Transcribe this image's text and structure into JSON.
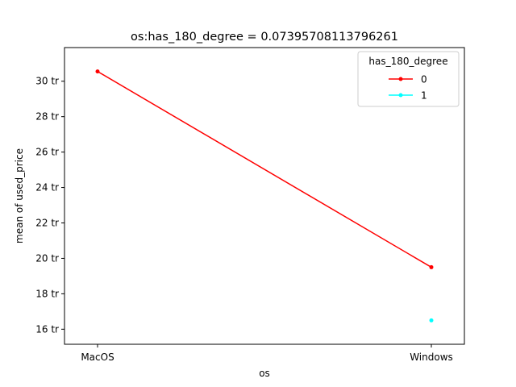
{
  "chart_data": {
    "type": "line",
    "title": "os:has_180_degree = 0.07395708113796261",
    "xlabel": "os",
    "ylabel": "mean of used_price",
    "categories": [
      "MacOS",
      "Windows"
    ],
    "ylim": [
      15.15,
      31.9
    ],
    "yticks": [
      16,
      18,
      20,
      22,
      24,
      26,
      28,
      30
    ],
    "ytick_suffix": " tr",
    "grid": false,
    "legend": {
      "title": "has_180_degree",
      "placement": "top-right"
    },
    "series": [
      {
        "name": "0",
        "color": "#ff0000",
        "values": [
          30.55,
          19.5
        ]
      },
      {
        "name": "1",
        "color": "#00ffff",
        "values": [
          null,
          16.5
        ]
      }
    ]
  }
}
